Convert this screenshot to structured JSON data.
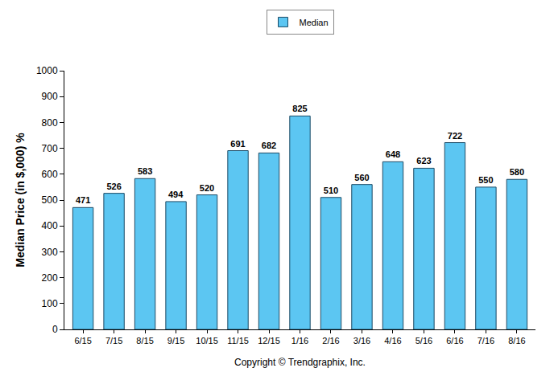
{
  "chart_data": {
    "type": "bar",
    "categories": [
      "6/15",
      "7/15",
      "8/15",
      "9/15",
      "10/15",
      "11/15",
      "12/15",
      "1/16",
      "2/16",
      "3/16",
      "4/16",
      "5/16",
      "6/16",
      "7/16",
      "8/16"
    ],
    "series": [
      {
        "name": "Median",
        "color": "#5cc6f2",
        "values": [
          471,
          526,
          583,
          494,
          520,
          691,
          682,
          825,
          510,
          560,
          648,
          623,
          722,
          550,
          580
        ]
      }
    ],
    "y_label": "Median Price (in $,000) %",
    "ylim": [
      0,
      1000
    ],
    "yticks": [
      0,
      100,
      200,
      300,
      400,
      500,
      600,
      700,
      800,
      900,
      1000
    ],
    "grid": false,
    "legend": "top",
    "data_labels": true,
    "annotations": [
      "Copyright © Trendgraphix, Inc."
    ]
  }
}
